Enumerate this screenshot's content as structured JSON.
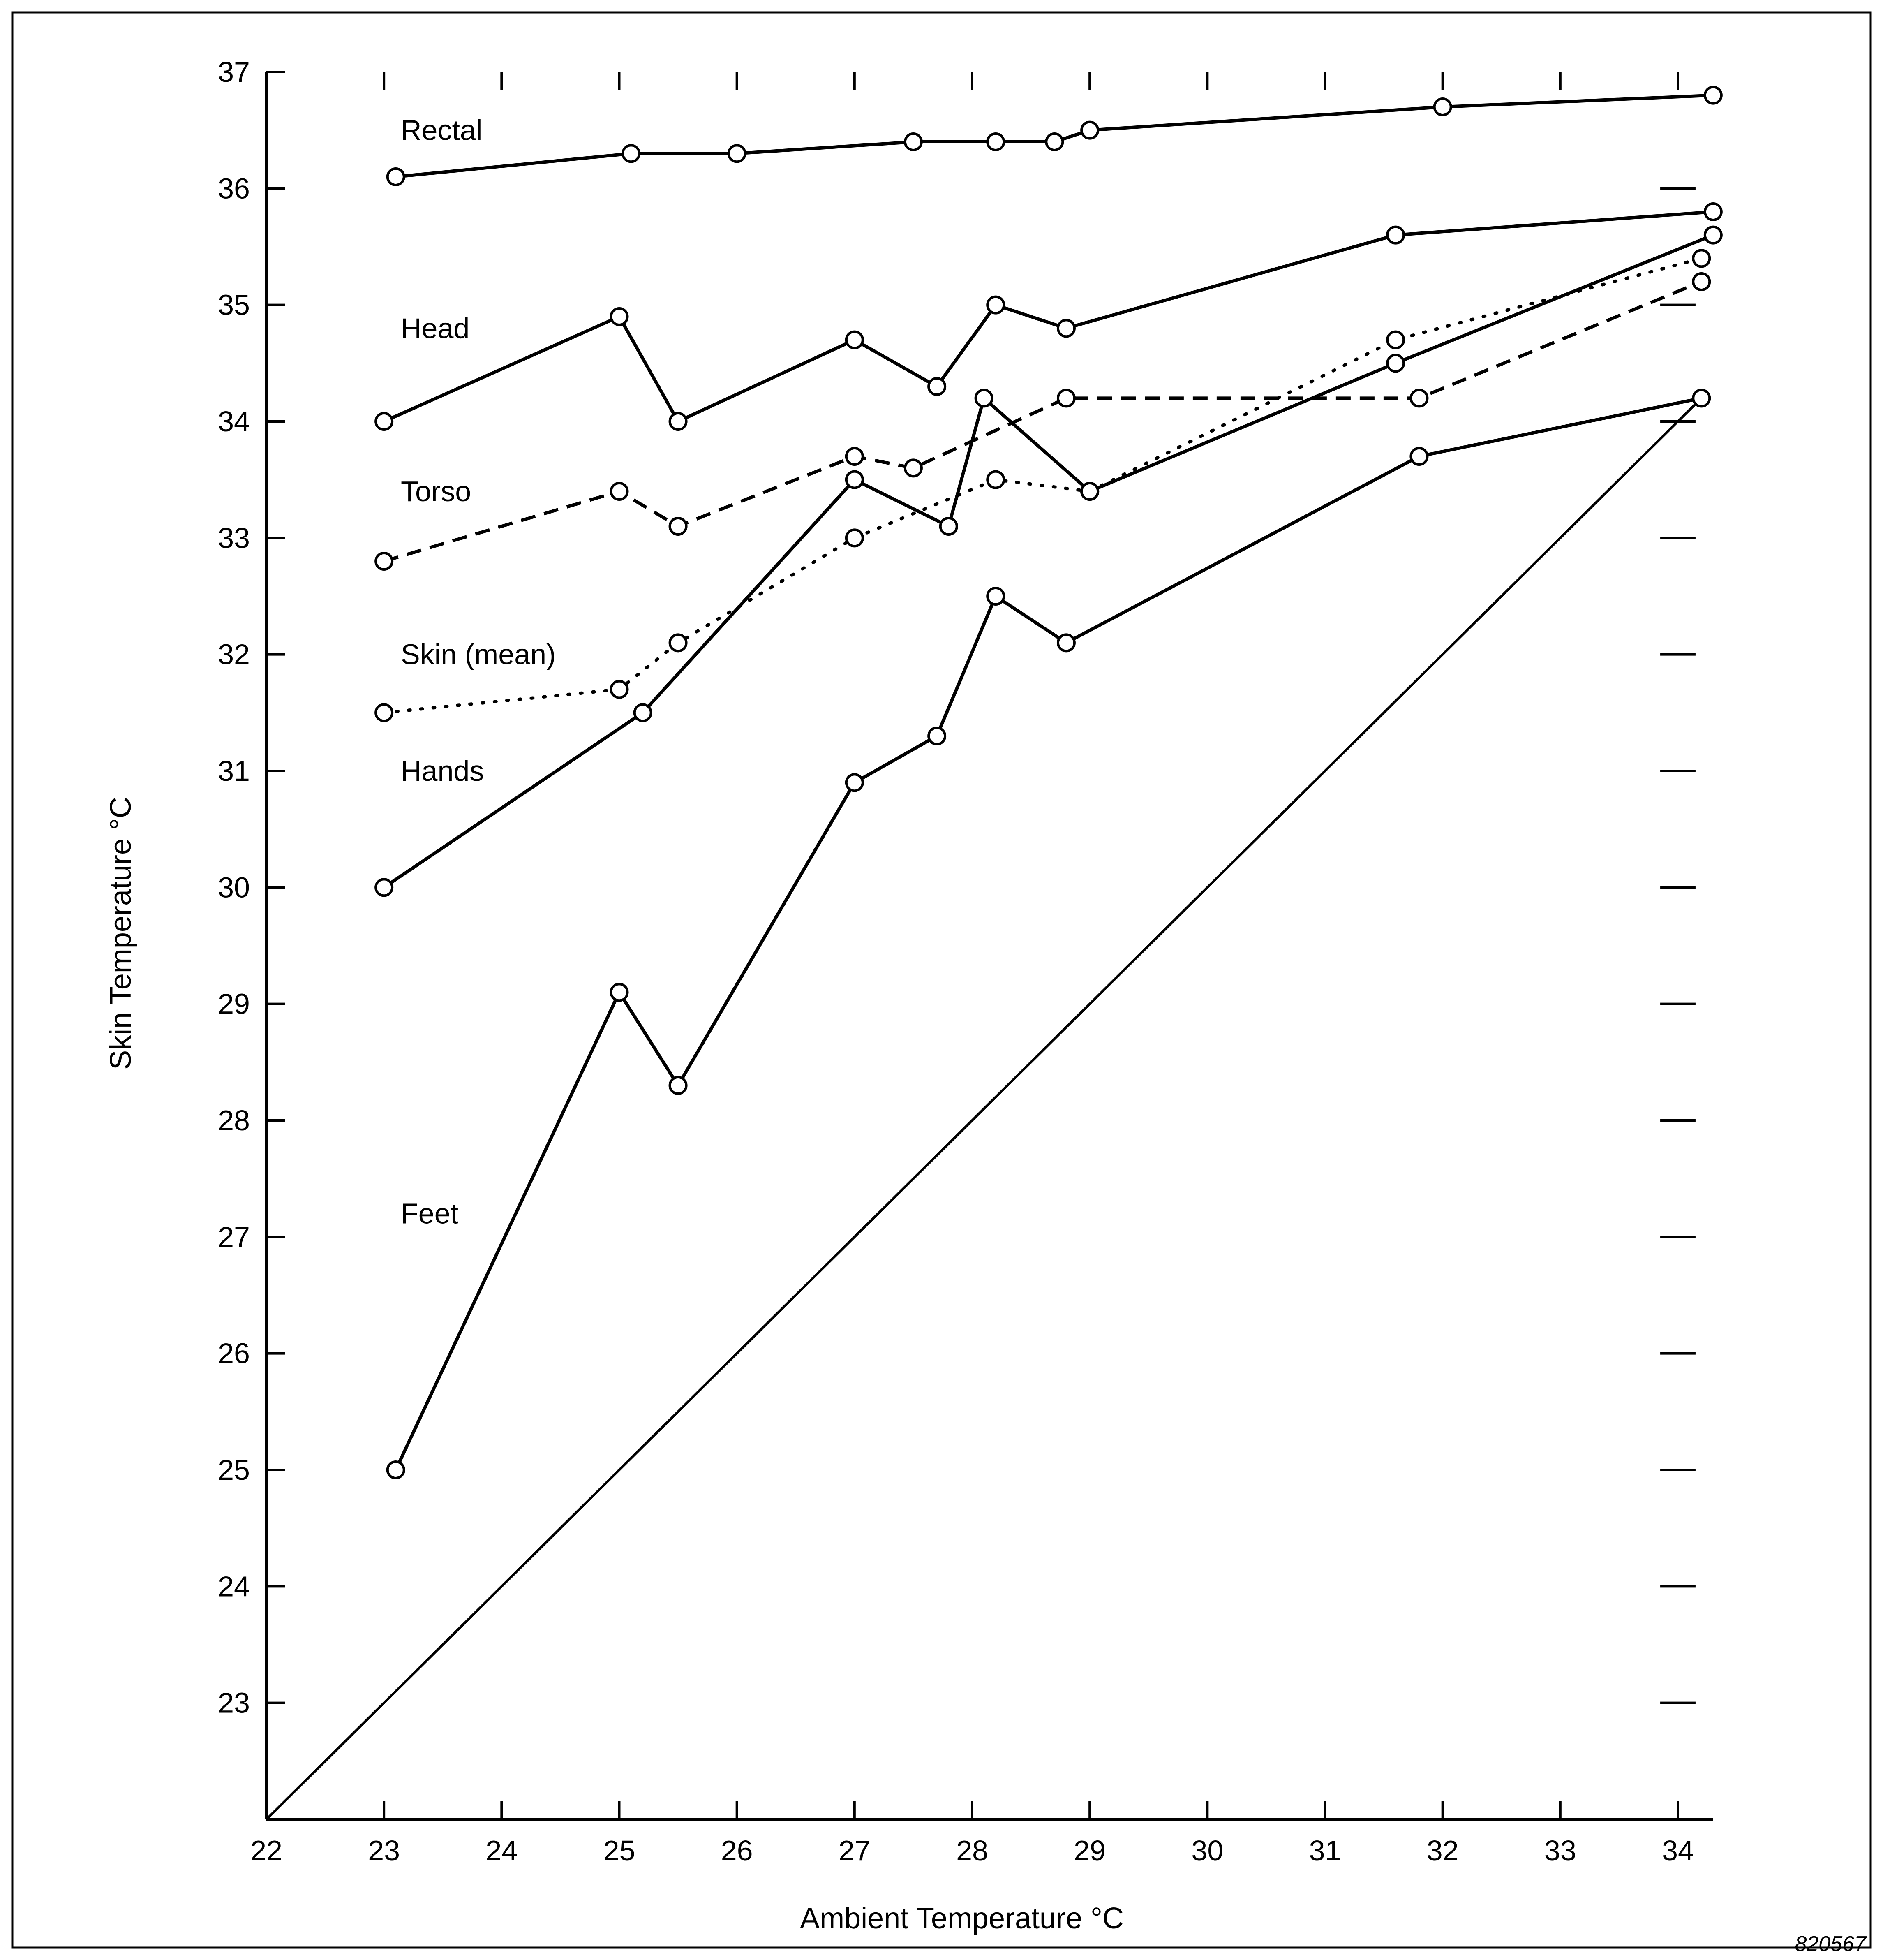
{
  "chart_data": {
    "type": "line",
    "xlabel": "Ambient Temperature °C",
    "ylabel": "Skin Temperature °C",
    "xlim": [
      22,
      34.3
    ],
    "ylim": [
      22,
      37
    ],
    "x_ticks": [
      "22",
      "23",
      "24",
      "25",
      "26",
      "27",
      "28",
      "29",
      "30",
      "31",
      "32",
      "33",
      "34"
    ],
    "y_ticks": [
      "23",
      "24",
      "25",
      "26",
      "27",
      "28",
      "29",
      "30",
      "31",
      "32",
      "33",
      "34",
      "35",
      "36",
      "37"
    ],
    "grid": false,
    "legend": "inline labels",
    "series": [
      {
        "name": "Rectal",
        "style": "solid",
        "points": [
          [
            23.1,
            36.1
          ],
          [
            25.1,
            36.3
          ],
          [
            26.0,
            36.3
          ],
          [
            27.5,
            36.4
          ],
          [
            28.2,
            36.4
          ],
          [
            28.7,
            36.4
          ],
          [
            29.0,
            36.5
          ],
          [
            32.0,
            36.7
          ],
          [
            34.3,
            36.8
          ]
        ]
      },
      {
        "name": "Head",
        "style": "solid",
        "points": [
          [
            23.0,
            34.0
          ],
          [
            25.0,
            34.9
          ],
          [
            25.5,
            34.0
          ],
          [
            27.0,
            34.7
          ],
          [
            27.7,
            34.3
          ],
          [
            28.2,
            35.0
          ],
          [
            28.8,
            34.8
          ],
          [
            31.6,
            35.6
          ],
          [
            34.3,
            35.8
          ]
        ]
      },
      {
        "name": "Torso",
        "style": "dashed",
        "points": [
          [
            23.0,
            32.8
          ],
          [
            25.0,
            33.4
          ],
          [
            25.5,
            33.1
          ],
          [
            27.0,
            33.7
          ],
          [
            27.5,
            33.6
          ],
          [
            28.8,
            34.2
          ],
          [
            31.8,
            34.2
          ],
          [
            34.2,
            35.2
          ]
        ]
      },
      {
        "name": "Skin (mean)",
        "style": "dotted",
        "points": [
          [
            23.0,
            31.5
          ],
          [
            25.0,
            31.7
          ],
          [
            25.5,
            32.1
          ],
          [
            27.0,
            33.0
          ],
          [
            28.2,
            33.5
          ],
          [
            29.0,
            33.4
          ],
          [
            31.6,
            34.7
          ],
          [
            34.2,
            35.4
          ]
        ]
      },
      {
        "name": "Hands",
        "style": "solid",
        "points": [
          [
            23.0,
            30.0
          ],
          [
            25.2,
            31.5
          ],
          [
            27.0,
            33.5
          ],
          [
            27.8,
            33.1
          ],
          [
            28.1,
            34.2
          ],
          [
            29.0,
            33.4
          ],
          [
            31.6,
            34.5
          ],
          [
            34.3,
            35.6
          ]
        ]
      },
      {
        "name": "Feet",
        "style": "solid",
        "points": [
          [
            23.1,
            25.0
          ],
          [
            25.0,
            29.1
          ],
          [
            25.5,
            28.3
          ],
          [
            27.0,
            30.9
          ],
          [
            27.7,
            31.3
          ],
          [
            28.2,
            32.5
          ],
          [
            28.8,
            32.1
          ],
          [
            31.8,
            33.7
          ],
          [
            34.2,
            34.2
          ]
        ]
      }
    ],
    "reference_line": {
      "points": [
        [
          22,
          22
        ],
        [
          34.2,
          34.2
        ]
      ]
    },
    "figure_id": "820567"
  }
}
